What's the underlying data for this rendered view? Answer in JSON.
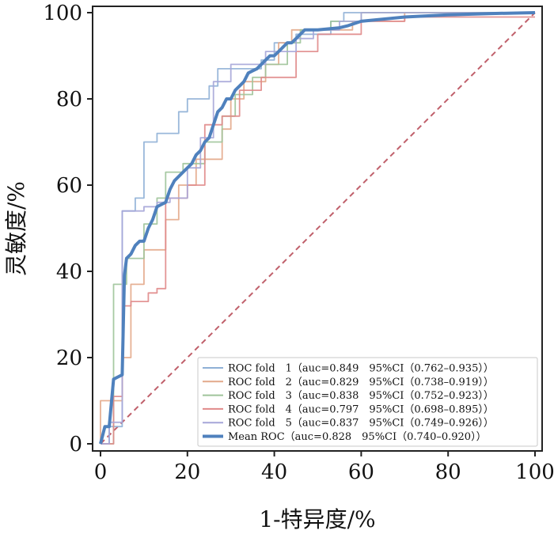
{
  "chart_data": {
    "type": "line",
    "title": "",
    "xlabel": "1-特异度/%",
    "ylabel": "灵敏度/%",
    "xlim": [
      0,
      100
    ],
    "ylim": [
      0,
      100
    ],
    "xticks": [
      "0",
      "20",
      "40",
      "60",
      "80",
      "100"
    ],
    "yticks": [
      "0",
      "20",
      "40",
      "60",
      "80",
      "100"
    ],
    "grid": false,
    "legend_position": "bottom-right",
    "series": [
      {
        "name": "ROC fold 1",
        "legend": "ROC fold　1（auc=0.849　95%CI（0.762–0.935））",
        "color": "#8fb0d6",
        "points": [
          [
            0,
            0
          ],
          [
            2,
            0
          ],
          [
            2,
            4
          ],
          [
            5,
            4
          ],
          [
            5,
            54
          ],
          [
            8,
            54
          ],
          [
            8,
            57
          ],
          [
            10,
            57
          ],
          [
            10,
            70
          ],
          [
            13,
            70
          ],
          [
            13,
            72
          ],
          [
            18,
            72
          ],
          [
            18,
            77
          ],
          [
            20,
            77
          ],
          [
            20,
            80
          ],
          [
            25,
            80
          ],
          [
            25,
            83
          ],
          [
            27,
            83
          ],
          [
            27,
            87
          ],
          [
            37,
            87
          ],
          [
            37,
            89
          ],
          [
            40,
            89
          ],
          [
            40,
            93
          ],
          [
            45,
            93
          ],
          [
            45,
            95
          ],
          [
            53,
            95
          ],
          [
            53,
            98
          ],
          [
            56,
            98
          ],
          [
            56,
            100
          ],
          [
            100,
            100
          ]
        ]
      },
      {
        "name": "ROC fold 2",
        "legend": "ROC fold　2（auc=0.829　95%CI（0.738–0.919））",
        "color": "#e3a98a",
        "points": [
          [
            0,
            0
          ],
          [
            0,
            10
          ],
          [
            5,
            10
          ],
          [
            5,
            20
          ],
          [
            7,
            20
          ],
          [
            7,
            37
          ],
          [
            10,
            37
          ],
          [
            10,
            45
          ],
          [
            15,
            45
          ],
          [
            15,
            52
          ],
          [
            18,
            52
          ],
          [
            18,
            60
          ],
          [
            22,
            60
          ],
          [
            22,
            66
          ],
          [
            28,
            66
          ],
          [
            28,
            73
          ],
          [
            30,
            73
          ],
          [
            30,
            80
          ],
          [
            33,
            80
          ],
          [
            33,
            84
          ],
          [
            38,
            84
          ],
          [
            38,
            88
          ],
          [
            41,
            88
          ],
          [
            41,
            93
          ],
          [
            44,
            93
          ],
          [
            44,
            96
          ],
          [
            58,
            96
          ],
          [
            58,
            98
          ],
          [
            70,
            98
          ],
          [
            70,
            100
          ],
          [
            100,
            100
          ]
        ]
      },
      {
        "name": "ROC fold 3",
        "legend": "ROC fold　3（auc=0.838　95%CI（0.752–0.923））",
        "color": "#9fc49a",
        "points": [
          [
            0,
            0
          ],
          [
            3,
            0
          ],
          [
            3,
            37
          ],
          [
            6,
            37
          ],
          [
            6,
            43
          ],
          [
            10,
            43
          ],
          [
            10,
            51
          ],
          [
            13,
            51
          ],
          [
            13,
            57
          ],
          [
            15,
            57
          ],
          [
            15,
            63
          ],
          [
            19,
            63
          ],
          [
            19,
            65
          ],
          [
            24,
            65
          ],
          [
            24,
            70
          ],
          [
            28,
            70
          ],
          [
            28,
            76
          ],
          [
            31,
            76
          ],
          [
            31,
            81
          ],
          [
            35,
            81
          ],
          [
            35,
            85
          ],
          [
            38,
            85
          ],
          [
            38,
            88
          ],
          [
            43,
            88
          ],
          [
            43,
            93
          ],
          [
            46,
            93
          ],
          [
            46,
            96
          ],
          [
            53,
            96
          ],
          [
            53,
            98
          ],
          [
            60,
            98
          ],
          [
            60,
            100
          ],
          [
            100,
            100
          ]
        ]
      },
      {
        "name": "ROC fold 4",
        "legend": "ROC fold　4（auc=0.797　95%CI（0.698–0.895））",
        "color": "#e08a8a",
        "points": [
          [
            0,
            0
          ],
          [
            3,
            0
          ],
          [
            3,
            11
          ],
          [
            5,
            11
          ],
          [
            5,
            32
          ],
          [
            7,
            32
          ],
          [
            7,
            33
          ],
          [
            11,
            33
          ],
          [
            11,
            35
          ],
          [
            13,
            35
          ],
          [
            13,
            36
          ],
          [
            15,
            36
          ],
          [
            15,
            57
          ],
          [
            20,
            57
          ],
          [
            20,
            60
          ],
          [
            24,
            60
          ],
          [
            24,
            74
          ],
          [
            28,
            74
          ],
          [
            28,
            76
          ],
          [
            32,
            76
          ],
          [
            32,
            82
          ],
          [
            37,
            82
          ],
          [
            37,
            85
          ],
          [
            45,
            85
          ],
          [
            45,
            91
          ],
          [
            50,
            91
          ],
          [
            50,
            95
          ],
          [
            60,
            95
          ],
          [
            60,
            98
          ],
          [
            70,
            98
          ],
          [
            70,
            99
          ],
          [
            100,
            99
          ]
        ]
      },
      {
        "name": "ROC fold 5",
        "legend": "ROC fold　5（auc=0.837　95%CI（0.749–0.926））",
        "color": "#a6a6d8",
        "points": [
          [
            0,
            0
          ],
          [
            2,
            0
          ],
          [
            2,
            5
          ],
          [
            5,
            5
          ],
          [
            5,
            54
          ],
          [
            10,
            54
          ],
          [
            10,
            55
          ],
          [
            13,
            55
          ],
          [
            13,
            56
          ],
          [
            16,
            56
          ],
          [
            16,
            57
          ],
          [
            20,
            57
          ],
          [
            20,
            64
          ],
          [
            23,
            64
          ],
          [
            23,
            71
          ],
          [
            26,
            71
          ],
          [
            26,
            84
          ],
          [
            30,
            84
          ],
          [
            30,
            88
          ],
          [
            38,
            88
          ],
          [
            38,
            91
          ],
          [
            45,
            91
          ],
          [
            45,
            94
          ],
          [
            49,
            94
          ],
          [
            49,
            96
          ],
          [
            55,
            96
          ],
          [
            55,
            98
          ],
          [
            60,
            98
          ],
          [
            60,
            100
          ],
          [
            100,
            100
          ]
        ]
      },
      {
        "name": "Mean ROC",
        "legend": "Mean ROC（auc=0.828　95%CI（0.740–0.920））",
        "color": "#4f81bd",
        "bold": true,
        "points": [
          [
            0,
            0
          ],
          [
            1,
            4
          ],
          [
            2,
            4
          ],
          [
            3,
            15
          ],
          [
            4,
            15.5
          ],
          [
            5,
            16
          ],
          [
            5.5,
            39
          ],
          [
            6,
            43
          ],
          [
            7,
            44
          ],
          [
            8,
            46
          ],
          [
            9,
            47
          ],
          [
            10,
            47
          ],
          [
            11,
            50
          ],
          [
            12,
            52
          ],
          [
            13,
            55
          ],
          [
            14,
            55.5
          ],
          [
            15,
            56
          ],
          [
            16,
            59
          ],
          [
            17,
            61
          ],
          [
            18,
            62
          ],
          [
            19,
            63
          ],
          [
            20,
            64
          ],
          [
            21,
            65
          ],
          [
            22,
            67
          ],
          [
            23,
            68
          ],
          [
            24,
            70
          ],
          [
            25,
            71
          ],
          [
            26,
            74
          ],
          [
            27,
            77
          ],
          [
            28,
            78
          ],
          [
            29,
            80
          ],
          [
            30,
            80
          ],
          [
            31,
            82
          ],
          [
            32,
            83
          ],
          [
            33,
            84
          ],
          [
            34,
            86
          ],
          [
            35,
            86.5
          ],
          [
            36,
            87
          ],
          [
            37,
            88
          ],
          [
            38,
            89
          ],
          [
            39,
            90
          ],
          [
            40,
            90
          ],
          [
            41,
            91
          ],
          [
            42,
            92
          ],
          [
            43,
            93
          ],
          [
            44,
            93
          ],
          [
            45,
            94
          ],
          [
            46,
            95
          ],
          [
            47,
            96
          ],
          [
            50,
            96
          ],
          [
            55,
            96.5
          ],
          [
            57,
            97
          ],
          [
            60,
            98
          ],
          [
            70,
            99
          ],
          [
            80,
            99.5
          ],
          [
            90,
            99.8
          ],
          [
            100,
            100
          ]
        ]
      }
    ],
    "reference_line": {
      "points": [
        [
          0,
          0
        ],
        [
          100,
          100
        ]
      ],
      "color": "#c0606b",
      "style": "dashed"
    }
  }
}
